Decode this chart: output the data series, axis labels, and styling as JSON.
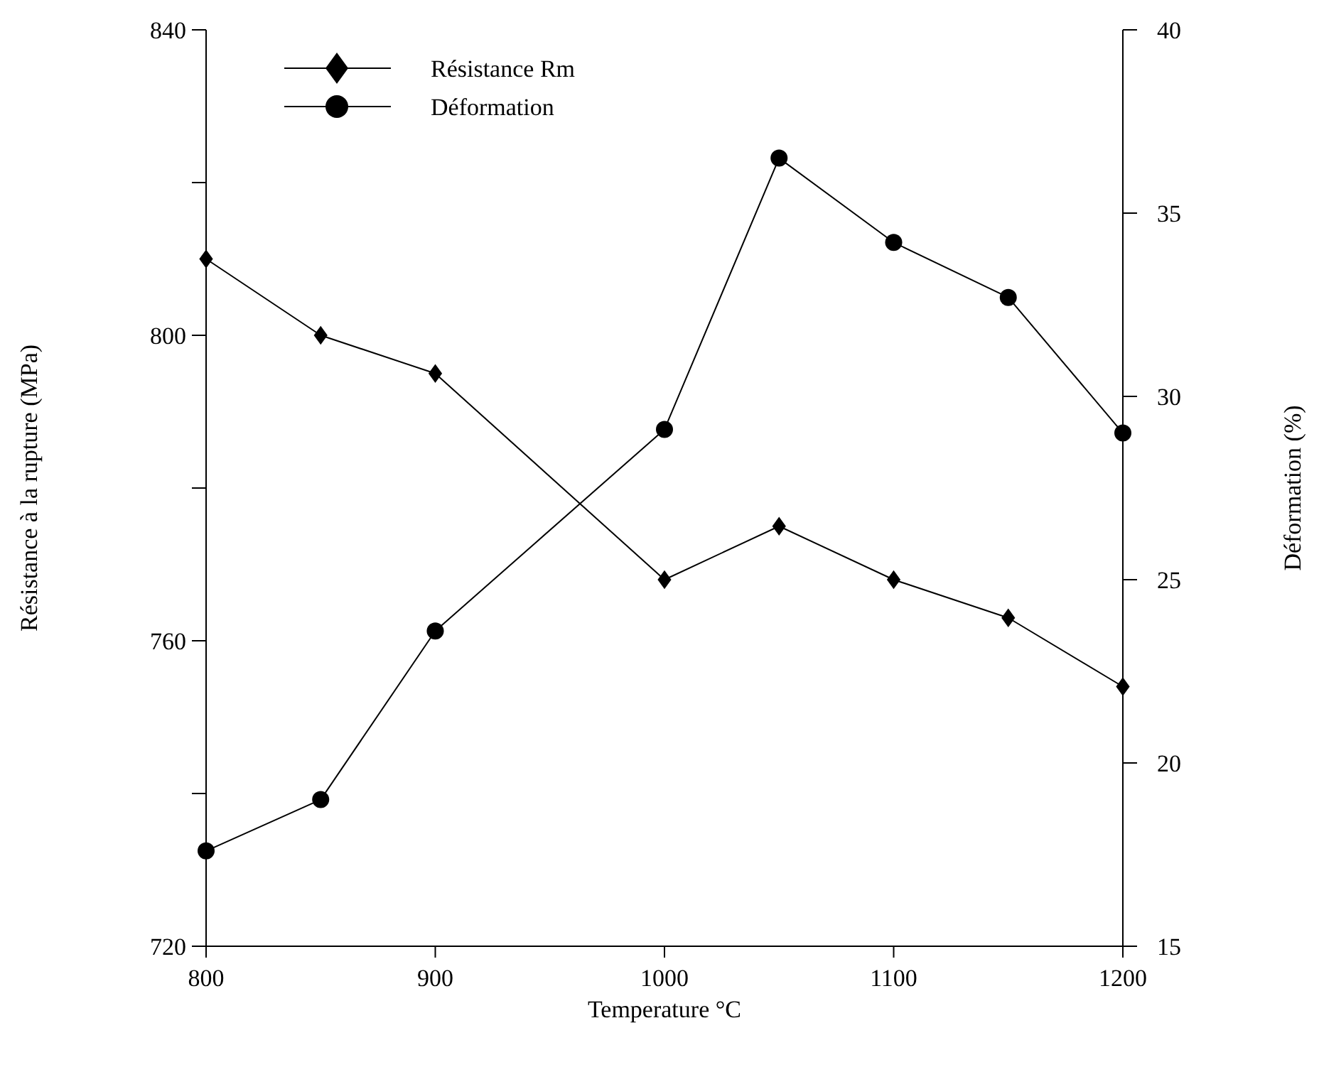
{
  "chart_data": {
    "type": "line",
    "xlabel": "Temperature °C",
    "ylabel": "Résistance à la rupture (MPa)",
    "y2label": "Déformation (%)",
    "x": [
      800,
      850,
      900,
      1000,
      1050,
      1100,
      1150,
      1200
    ],
    "xlim": [
      800,
      1200
    ],
    "xticks": [
      800,
      900,
      1000,
      1100,
      1200
    ],
    "ylim": [
      720,
      840
    ],
    "yticks": [
      720,
      {
        "value": 740,
        "label": null
      },
      760,
      {
        "value": 780,
        "label": null
      },
      800,
      {
        "value": 820,
        "label": null
      },
      840
    ],
    "y2lim": [
      15,
      40
    ],
    "y2ticks": [
      15,
      20,
      25,
      30,
      35,
      40
    ],
    "legend": "top left",
    "grid": false,
    "line_style": "solid",
    "series": [
      {
        "name": "Résistance Rm",
        "color": "#000000",
        "marker": "diamond",
        "values": [
          810,
          800,
          795,
          768,
          775,
          768,
          763,
          754
        ]
      },
      {
        "name": "Déformation",
        "color": "#000000",
        "marker": "circle",
        "axis": "y2",
        "values": [
          17.6,
          19.0,
          23.6,
          29.1,
          36.5,
          34.2,
          32.7,
          29.0
        ]
      }
    ]
  }
}
